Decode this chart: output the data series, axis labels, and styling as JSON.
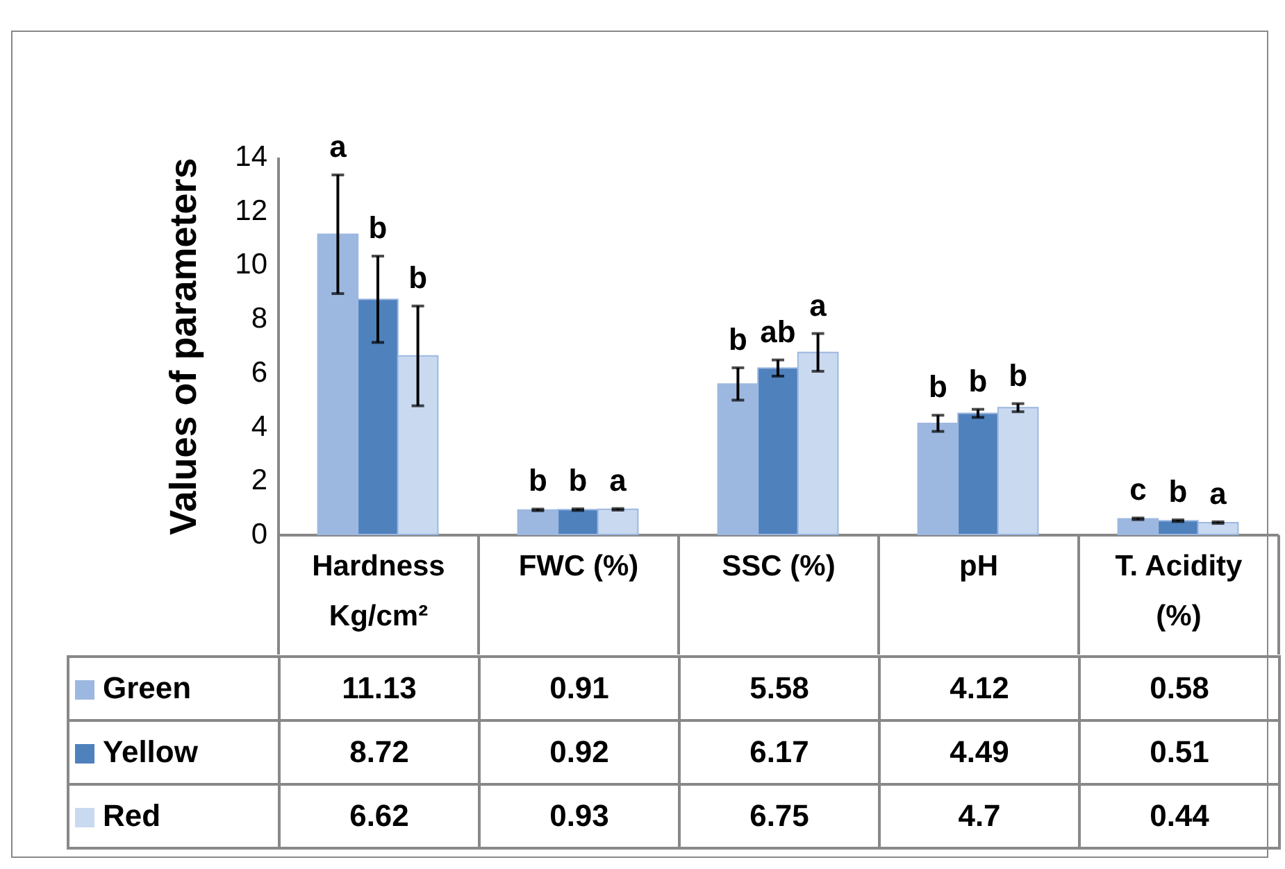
{
  "chart_data": {
    "type": "bar",
    "ylabel": "Values of parameters",
    "categories": [
      "Hardness Kg/cm²",
      "FWC (%)",
      "SSC (%)",
      "pH",
      "T. Acidity (%)"
    ],
    "series": [
      {
        "name": "Green",
        "color": "#9db8e0",
        "values": [
          11.13,
          0.91,
          5.58,
          4.12,
          0.58
        ],
        "errors": [
          2.2,
          0.03,
          0.6,
          0.3,
          0.03
        ]
      },
      {
        "name": "Yellow",
        "color": "#4f81bd",
        "values": [
          8.72,
          0.92,
          6.17,
          4.49,
          0.51
        ],
        "errors": [
          1.6,
          0.03,
          0.3,
          0.15,
          0.03
        ]
      },
      {
        "name": "Red",
        "color": "#c9d9f0",
        "values": [
          6.62,
          0.93,
          6.75,
          4.7,
          0.44
        ],
        "errors": [
          1.85,
          0.03,
          0.7,
          0.15,
          0.03
        ]
      }
    ],
    "ylim": [
      0,
      14
    ],
    "yticks": [
      0,
      2,
      4,
      6,
      8,
      10,
      12,
      14
    ],
    "grid": false,
    "legend": "bottom",
    "data_labels": true,
    "annotations": [
      "a",
      "b",
      "b",
      "b",
      "b",
      "a",
      "b",
      "ab",
      "a",
      "b",
      "b",
      "b",
      "c",
      "b",
      "a"
    ]
  }
}
